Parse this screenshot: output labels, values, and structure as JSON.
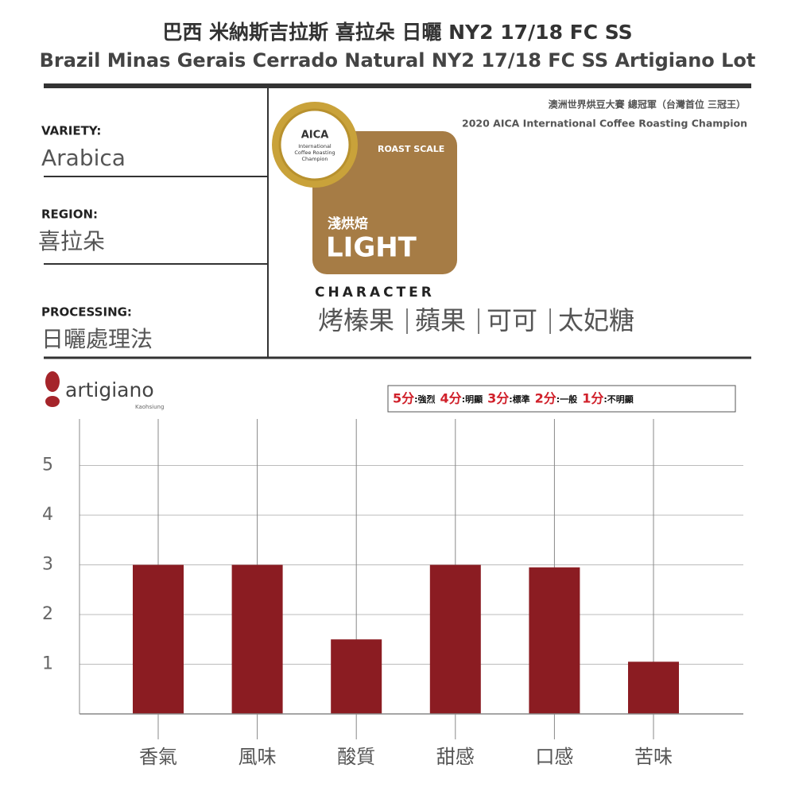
{
  "header": {
    "title_zh": "巴西 米納斯吉拉斯 喜拉朵 日曬 NY2 17/18 FC SS",
    "title_en": "Brazil Minas Gerais Cerrado Natural NY2 17/18 FC SS Artigiano Lot"
  },
  "info": {
    "variety_label": "VARIETY:",
    "variety": "Arabica",
    "region_label": "REGION:",
    "region": "喜拉朵",
    "processing_label": "PROCESSING:",
    "processing": "日曬處理法"
  },
  "award": {
    "zh": "澳洲世界烘豆大賽 總冠軍（台灣首位 三冠王）",
    "en": "2020 AICA International Coffee Roasting Champion",
    "badge_title": "AICA",
    "badge_line1": "International",
    "badge_line2": "Coffee Roasting",
    "badge_line3": "Champion"
  },
  "roast": {
    "label": "ROAST SCALE",
    "level_zh": "淺烘焙",
    "level_en": "LIGHT"
  },
  "character": {
    "label": "CHARACTER",
    "flavors": [
      "烤榛果",
      "蘋果",
      "可可",
      "太妃糖"
    ]
  },
  "brand": {
    "name": "artigiano",
    "city": "Kaohsiung"
  },
  "scale_legend": [
    {
      "score": "5分",
      "desc": ":強烈"
    },
    {
      "score": "4分",
      "desc": ":明顯"
    },
    {
      "score": "3分",
      "desc": ":標準"
    },
    {
      "score": "2分",
      "desc": ":一般"
    },
    {
      "score": "1分",
      "desc": ":不明顯"
    }
  ],
  "chart_data": {
    "type": "bar",
    "categories": [
      "香氣",
      "風味",
      "酸質",
      "甜感",
      "口感",
      "苦味"
    ],
    "values": [
      3,
      3,
      1.5,
      3,
      2.95,
      1.05
    ],
    "color": "#8b1c22",
    "ylim": [
      0,
      6
    ],
    "yticks": [
      1,
      2,
      3,
      4,
      5
    ],
    "grid": true
  }
}
